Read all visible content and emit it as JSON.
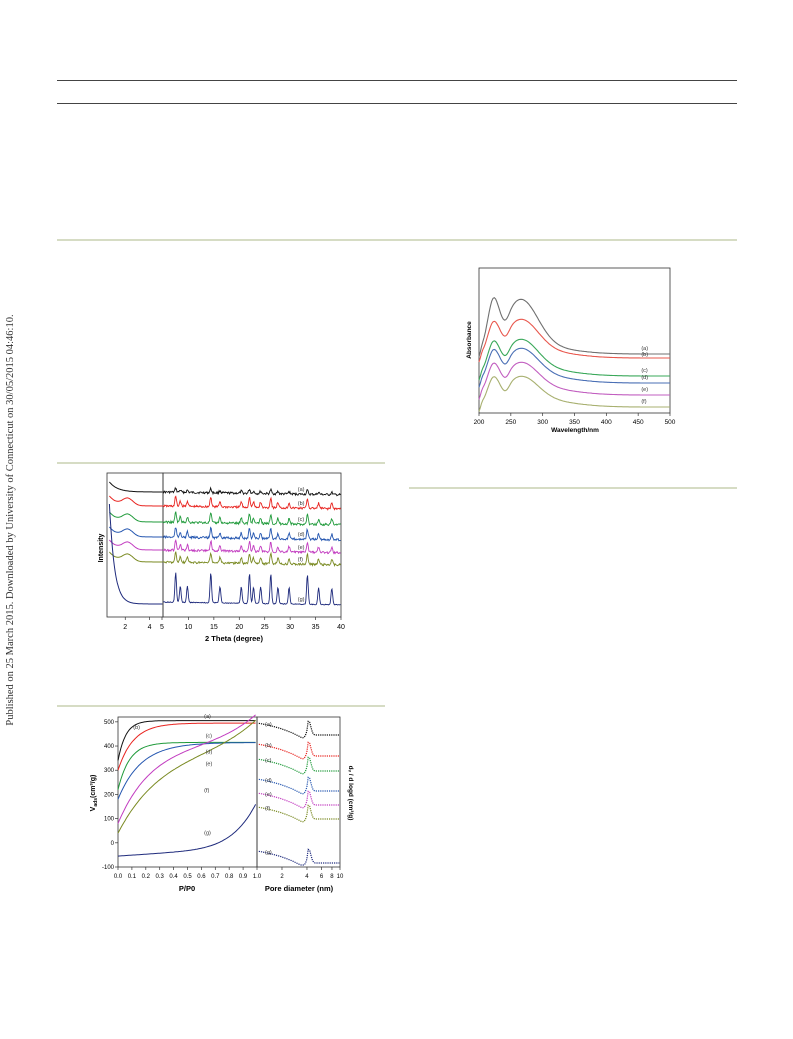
{
  "sidebar": {
    "published_text": "Published on 25 March 2015. Downloaded by University of Connecticut on 30/05/2015 04:46:10."
  },
  "figures": {
    "uv": {
      "ylabel": "Absorbance",
      "xlabel": "Wavelength/nm",
      "xticks": [
        "200",
        "250",
        "300",
        "350",
        "400",
        "450",
        "500"
      ],
      "labels": [
        "(a)",
        "(b)",
        "(c)",
        "(d)",
        "(e)",
        "(f)"
      ],
      "colors": [
        "#707070",
        "#e8584e",
        "#3aa85a",
        "#4a6fb5",
        "#c25fc0",
        "#a8b070"
      ]
    },
    "xrd": {
      "ylabel": "Intensity",
      "xlabel": "2 Theta (degree)",
      "xticks_left": [
        "2",
        "4",
        "5"
      ],
      "xticks_right": [
        "10",
        "15",
        "20",
        "25",
        "30",
        "35",
        "40"
      ],
      "labels": [
        "(a)",
        "(b)",
        "(c)",
        "(d)",
        "(e)",
        "(f)",
        "(g)"
      ],
      "colors": [
        "#111111",
        "#e8231f",
        "#1f9a3a",
        "#2456b0",
        "#c23cc0",
        "#7a8a22",
        "#1e2a7c"
      ]
    },
    "iso": {
      "ylabel_html": "V",
      "ylabel_sub": "ads",
      "ylabel_rest": "(cm³/g)",
      "ylabel_right": "dᵥ / d logd (cm³/g)",
      "xlabel_left": "P/P0",
      "xlabel_right": "Pore diameter (nm)",
      "yticks": [
        "500",
        "400",
        "300",
        "200",
        "100",
        "0",
        "-100"
      ],
      "xticks_left": [
        "0.0",
        "0.1",
        "0.2",
        "0.3",
        "0.4",
        "0.5",
        "0.6",
        "0.7",
        "0.8",
        "0.9",
        "1.0"
      ],
      "xticks_right": [
        "2",
        "4",
        "6",
        "8",
        "10"
      ],
      "labels": [
        "(a)",
        "(b)",
        "(c)",
        "(d)",
        "(e)",
        "(f)",
        "(g)"
      ],
      "colors": [
        "#111111",
        "#e8231f",
        "#1f9a3a",
        "#2456b0",
        "#c23cc0",
        "#7a8a22",
        "#1e2a7c"
      ]
    }
  }
}
